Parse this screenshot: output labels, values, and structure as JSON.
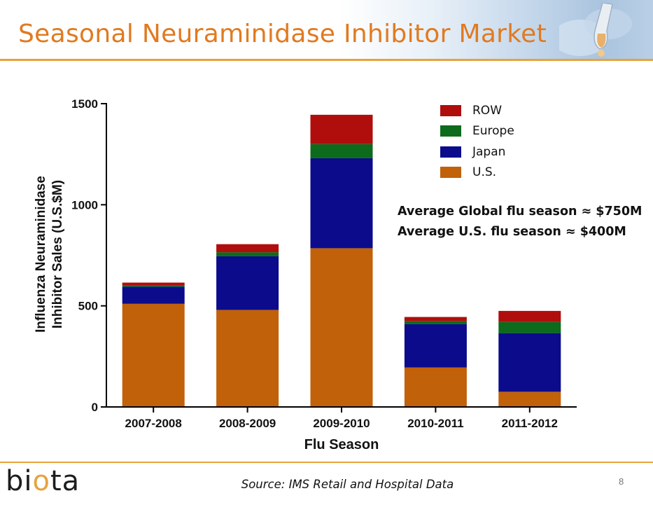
{
  "slide": {
    "title": "Seasonal Neuraminidase Inhibitor Market",
    "source": "Source: IMS Retail and Hospital Data",
    "page_number": "8",
    "logo": {
      "before": "bi",
      "accent": "o",
      "after": "ta"
    }
  },
  "annotation": {
    "line1": "Average Global flu season ≈ $750M",
    "line2": "Average U.S. flu season ≈ $400M"
  },
  "legend": [
    {
      "label": "ROW",
      "color": "#b00d0d"
    },
    {
      "label": "Europe",
      "color": "#0c6b1c"
    },
    {
      "label": "Japan",
      "color": "#0b0b8c"
    },
    {
      "label": "U.S.",
      "color": "#c1610a"
    }
  ],
  "chart_data": {
    "type": "bar",
    "stacked": true,
    "categories": [
      "2007-2008",
      "2008-2009",
      "2009-2010",
      "2010-2011",
      "2011-2012"
    ],
    "series": [
      {
        "name": "U.S.",
        "color": "#c1610a",
        "values": [
          510,
          480,
          785,
          195,
          75
        ]
      },
      {
        "name": "Japan",
        "color": "#0b0b8c",
        "values": [
          85,
          265,
          445,
          215,
          290
        ]
      },
      {
        "name": "Europe",
        "color": "#0c6b1c",
        "values": [
          5,
          20,
          70,
          15,
          55
        ]
      },
      {
        "name": "ROW",
        "color": "#b00d0d",
        "values": [
          15,
          40,
          145,
          20,
          55
        ]
      }
    ],
    "xlabel": "Flu  Season",
    "ylabel": "Influenza Neuraminidase Inhibitor Sales  (U.S.$M)",
    "ylabel_lines": [
      "Influenza Neuraminidase",
      "Inhibitor Sales  (U.S.$M)"
    ],
    "yticks": [
      0,
      500,
      1000,
      1500
    ],
    "ylim": [
      0,
      1500
    ],
    "grid": false,
    "legend_position": "top-right"
  }
}
